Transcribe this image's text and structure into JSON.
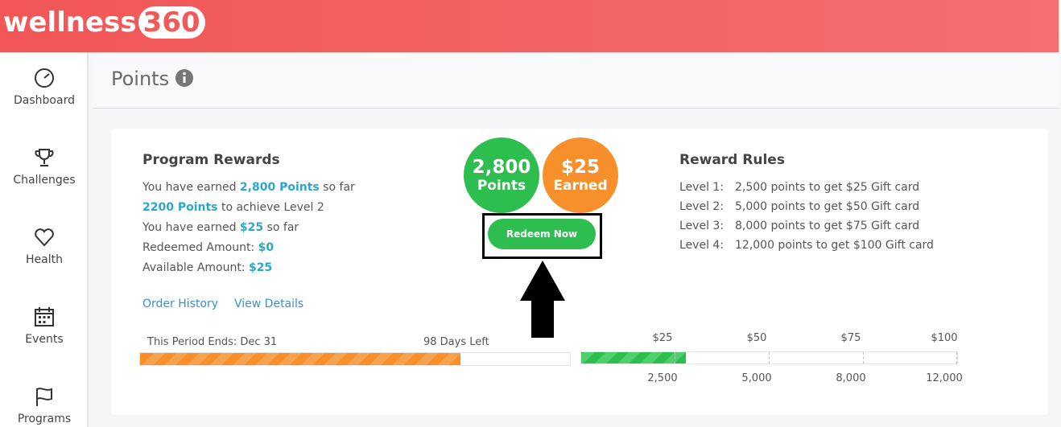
{
  "header": {
    "logo_text": "wellness",
    "logo_number": "360"
  },
  "sidebar": {
    "items": [
      "Dashboard",
      "Challenges",
      "Health",
      "Events",
      "Programs"
    ]
  },
  "page": {
    "title": "Points"
  },
  "program_rewards": {
    "title": "Program Rewards",
    "lines": [
      [
        "You have earned ",
        "2,800 Points",
        " so far"
      ],
      [
        "2200 Points",
        " to achieve Level 2"
      ],
      [
        "You have earned ",
        "$25",
        " so far"
      ],
      [
        "Redeemed Amount: ",
        "$0"
      ],
      [
        "Available Amount: ",
        "$25"
      ]
    ],
    "links": [
      "Order History",
      "View Details"
    ]
  },
  "badges": {
    "points_value": "2,800",
    "points_label": "Points",
    "earned_value": "$25",
    "earned_label": "Earned",
    "button": "Redeem Now"
  },
  "reward_rules": {
    "title": "Reward Rules",
    "rows": [
      [
        "Level 1:",
        "2,500 points to get $25 Gift card"
      ],
      [
        "Level 2:",
        "5,000 points to get $50 Gift card"
      ],
      [
        "Level 3:",
        "8,000 points to get $75 Gift card"
      ],
      [
        "Level 4:",
        "12,000 points to get $100 Gift card"
      ]
    ]
  },
  "period": {
    "ends": "This Period Ends: Dec 31",
    "left": "98 Days Left"
  },
  "levels": {
    "rewards": [
      "$25",
      "$50",
      "$75",
      "$100"
    ],
    "points": [
      "2,500",
      "5,000",
      "8,000",
      "12,000"
    ]
  }
}
